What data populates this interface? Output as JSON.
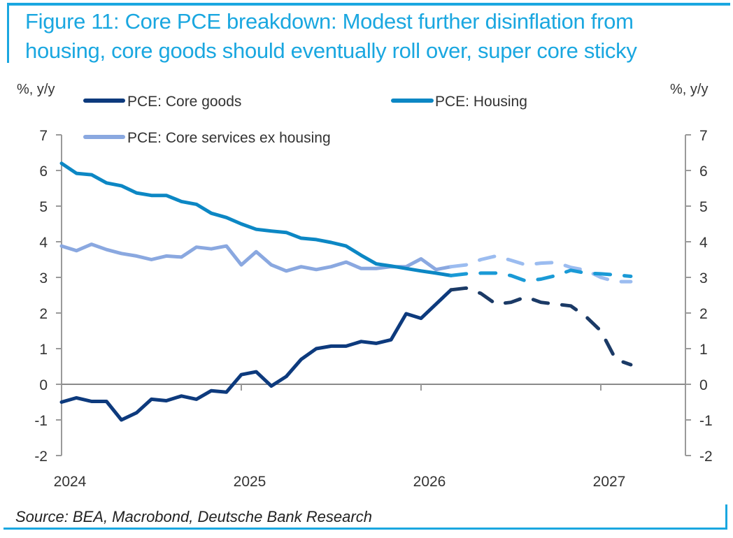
{
  "figure": {
    "title": "Figure 11: Core PCE breakdown: Modest further disinflation from housing, core goods should eventually roll over, super core sticky",
    "title_line1": "Figure 11: Core PCE breakdown: Modest further disinflation from",
    "title_line2": "housing, core goods should eventually roll over, super core sticky",
    "source": "Source: BEA, Macrobond, Deutsche Bank Research",
    "accent_color": "#1aa7e0"
  },
  "chart_data": {
    "type": "line",
    "title": "Core PCE breakdown",
    "xlabel": "",
    "ylabel_left": "%, y/y",
    "ylabel_right": "%, y/y",
    "ylim": [
      -2,
      7
    ],
    "yticks": [
      7,
      6,
      5,
      4,
      3,
      2,
      1,
      0,
      -1,
      -2
    ],
    "x_tick_labels": [
      "2024",
      "2025",
      "2026",
      "2027"
    ],
    "x_tick_values": [
      2024,
      2025,
      2026,
      2027
    ],
    "xlim": [
      2024,
      2027.5
    ],
    "grid": false,
    "legend_position": "top",
    "legend": [
      "PCE: Core goods",
      "PCE: Housing",
      "PCE: Core services ex housing"
    ],
    "series": [
      {
        "name": "PCE: Core goods",
        "color": "#0d3a7d",
        "forecast_color": "#1b3a66",
        "actual": {
          "x": [
            2024.0,
            2024.083,
            2024.167,
            2024.25,
            2024.333,
            2024.417,
            2024.5,
            2024.583,
            2024.667,
            2024.75,
            2024.833,
            2024.917,
            2025.0,
            2025.083,
            2025.167,
            2025.25,
            2025.333,
            2025.417,
            2025.5,
            2025.583,
            2025.667,
            2025.75,
            2025.833,
            2025.917,
            2026.0,
            2026.083,
            2026.167
          ],
          "y": [
            -0.5,
            -0.38,
            -0.48,
            -0.48,
            -1.0,
            -0.8,
            -0.42,
            -0.46,
            -0.33,
            -0.42,
            -0.18,
            -0.22,
            0.27,
            0.35,
            -0.05,
            0.22,
            0.7,
            1.0,
            1.07,
            1.07,
            1.2,
            1.15,
            1.25,
            1.98,
            1.85,
            2.25,
            2.65
          ]
        },
        "forecast": {
          "x": [
            2026.167,
            2026.25,
            2026.333,
            2026.417,
            2026.5,
            2026.583,
            2026.667,
            2026.75,
            2026.833,
            2026.917,
            2027.0,
            2027.083,
            2027.167
          ],
          "y": [
            2.65,
            2.7,
            2.55,
            2.25,
            2.3,
            2.45,
            2.3,
            2.25,
            2.2,
            1.9,
            1.5,
            0.7,
            0.55
          ]
        }
      },
      {
        "name": "PCE: Housing",
        "color": "#0c87c4",
        "forecast_color": "#1a9ad6",
        "actual": {
          "x": [
            2024.0,
            2024.083,
            2024.167,
            2024.25,
            2024.333,
            2024.417,
            2024.5,
            2024.583,
            2024.667,
            2024.75,
            2024.833,
            2024.917,
            2025.0,
            2025.083,
            2025.167,
            2025.25,
            2025.333,
            2025.417,
            2025.5,
            2025.583,
            2025.667,
            2025.75,
            2025.833,
            2025.917,
            2026.0,
            2026.083,
            2026.167
          ],
          "y": [
            6.2,
            5.92,
            5.88,
            5.65,
            5.57,
            5.37,
            5.3,
            5.3,
            5.13,
            5.05,
            4.8,
            4.68,
            4.5,
            4.35,
            4.3,
            4.26,
            4.1,
            4.06,
            3.98,
            3.88,
            3.62,
            3.38,
            3.32,
            3.25,
            3.18,
            3.12,
            3.05
          ]
        },
        "forecast": {
          "x": [
            2026.167,
            2026.25,
            2026.333,
            2026.417,
            2026.5,
            2026.583,
            2026.667,
            2026.75,
            2026.833,
            2026.917,
            2027.0,
            2027.083,
            2027.167
          ],
          "y": [
            3.05,
            3.1,
            3.12,
            3.12,
            3.05,
            2.9,
            2.95,
            3.05,
            3.2,
            3.12,
            3.1,
            3.07,
            3.03
          ]
        }
      },
      {
        "name": "PCE: Core services ex housing",
        "color": "#8aa8e0",
        "forecast_color": "#9bbcf0",
        "actual": {
          "x": [
            2024.0,
            2024.083,
            2024.167,
            2024.25,
            2024.333,
            2024.417,
            2024.5,
            2024.583,
            2024.667,
            2024.75,
            2024.833,
            2024.917,
            2025.0,
            2025.083,
            2025.167,
            2025.25,
            2025.333,
            2025.417,
            2025.5,
            2025.583,
            2025.667,
            2025.75,
            2025.833,
            2025.917,
            2026.0,
            2026.083,
            2026.167
          ],
          "y": [
            3.88,
            3.75,
            3.93,
            3.78,
            3.67,
            3.6,
            3.5,
            3.6,
            3.57,
            3.85,
            3.8,
            3.88,
            3.35,
            3.72,
            3.35,
            3.18,
            3.3,
            3.22,
            3.3,
            3.43,
            3.25,
            3.25,
            3.3,
            3.3,
            3.52,
            3.22,
            3.3
          ]
        },
        "forecast": {
          "x": [
            2026.167,
            2026.25,
            2026.333,
            2026.417,
            2026.5,
            2026.583,
            2026.667,
            2026.75,
            2026.833,
            2026.917,
            2027.0,
            2027.083,
            2027.167
          ],
          "y": [
            3.3,
            3.35,
            3.5,
            3.6,
            3.48,
            3.35,
            3.4,
            3.42,
            3.28,
            3.2,
            3.0,
            2.88,
            2.88
          ]
        }
      }
    ]
  }
}
